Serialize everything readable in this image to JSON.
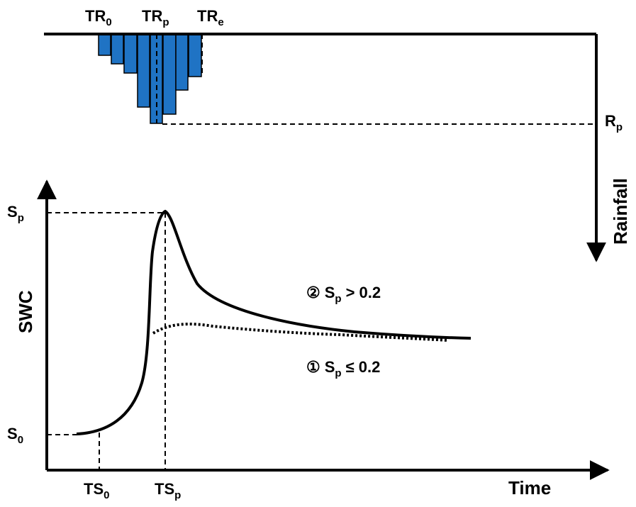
{
  "rainfall": {
    "axis_label": "Rainfall",
    "peak_label": {
      "base": "R",
      "sub": "p"
    },
    "time_labels": [
      {
        "base": "TR",
        "sub": "0"
      },
      {
        "base": "TR",
        "sub": "p"
      },
      {
        "base": "TR",
        "sub": "e"
      }
    ],
    "bar_color": "#1f73c4"
  },
  "swc": {
    "y_axis_label": "SWC",
    "x_axis_label": "Time",
    "y_labels": {
      "peak": {
        "base": "S",
        "sub": "p"
      },
      "initial": {
        "base": "S",
        "sub": "0"
      }
    },
    "x_labels": {
      "start": {
        "base": "TS",
        "sub": "0"
      },
      "peak": {
        "base": "TS",
        "sub": "p"
      }
    },
    "curves": [
      {
        "marker": "②",
        "base": "S",
        "sub": "p",
        "condition": "> 0.2",
        "style": "solid"
      },
      {
        "marker": "①",
        "base": "S",
        "sub": "p",
        "condition": "≤ 0.2",
        "style": "dotted"
      }
    ]
  }
}
